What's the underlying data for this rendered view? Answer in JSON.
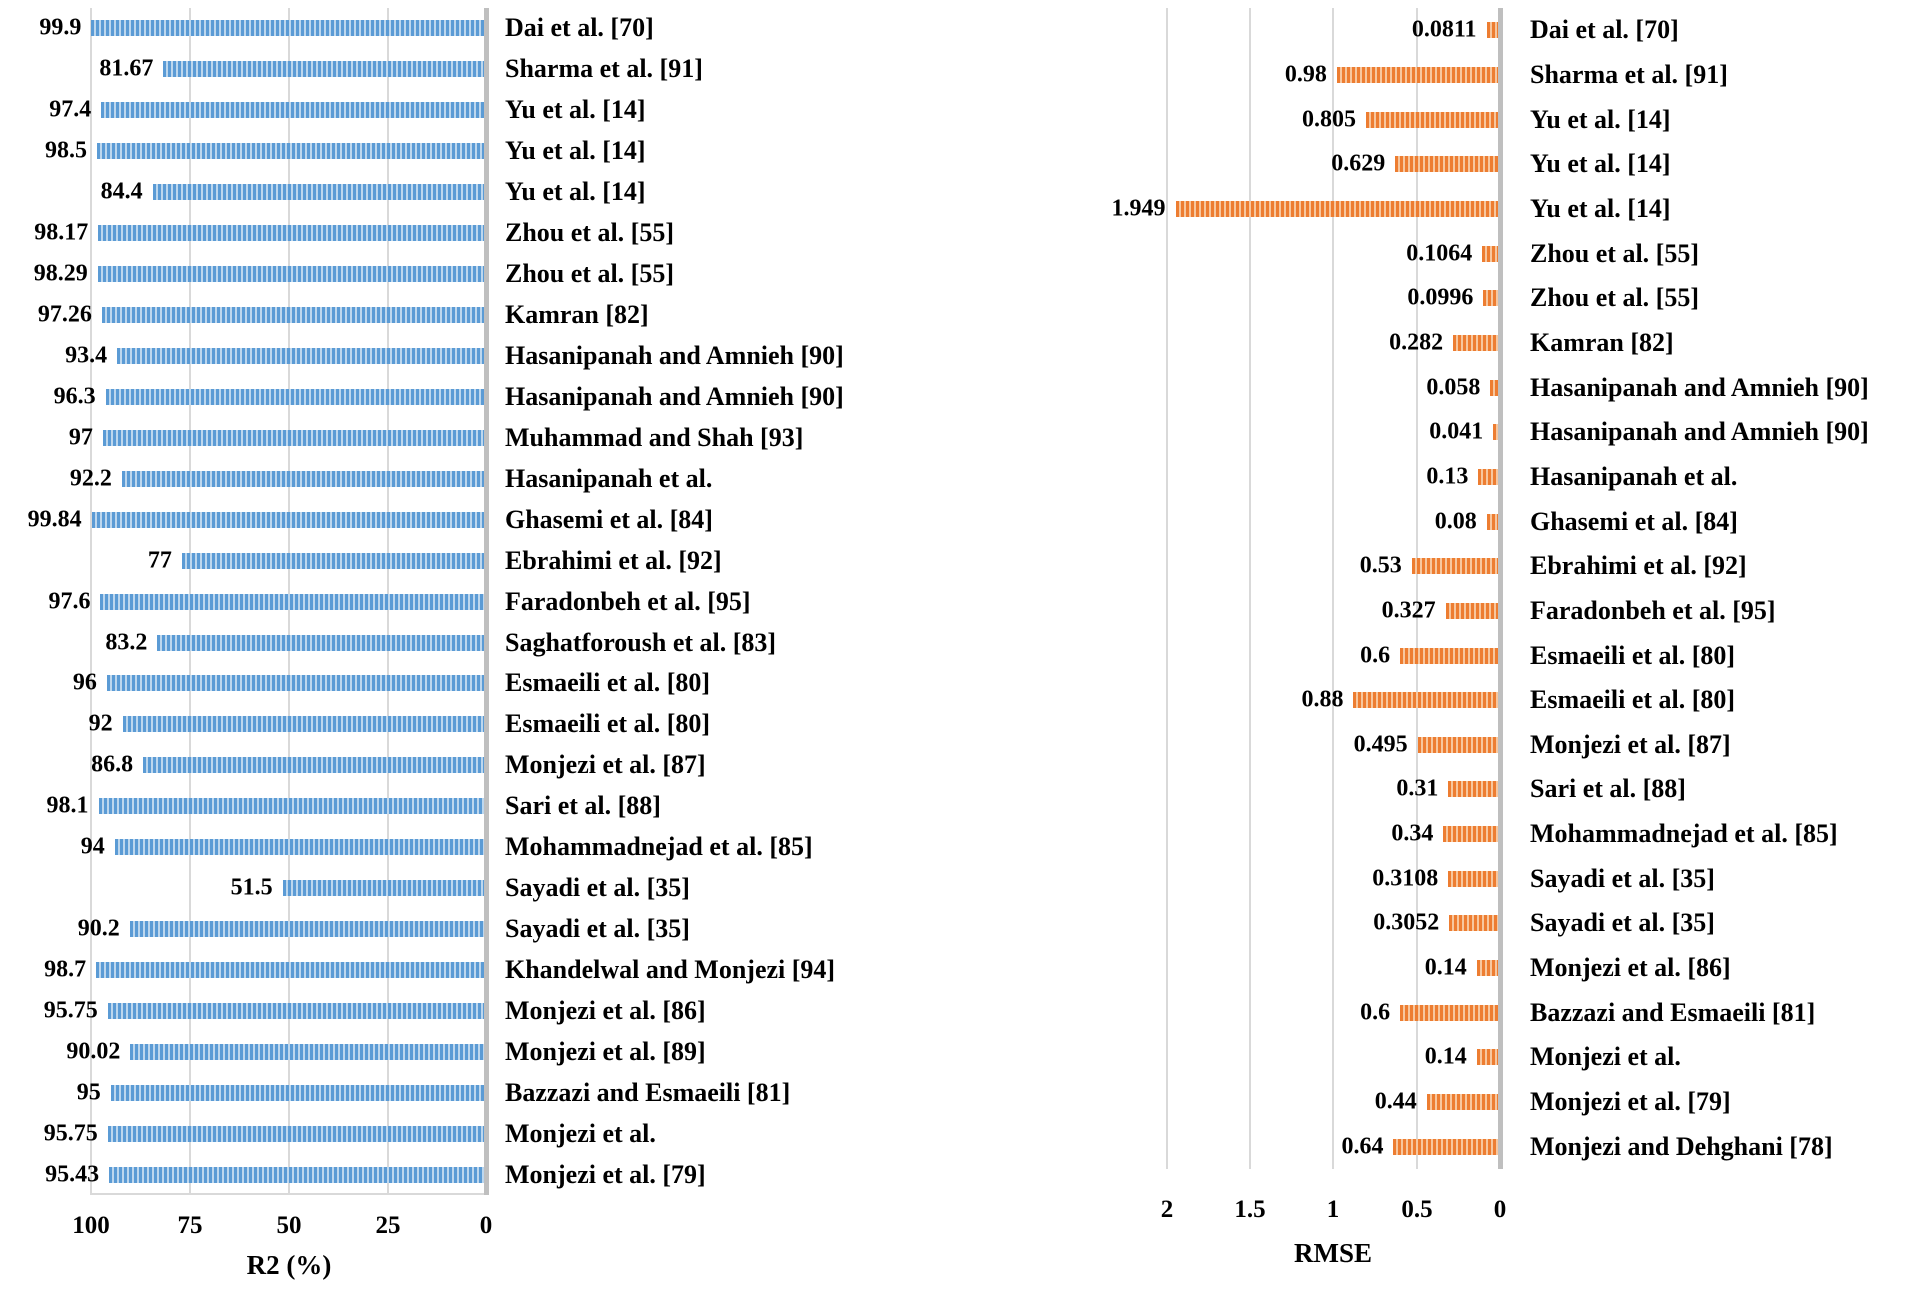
{
  "colors": {
    "left_bar": "#5B9BD5",
    "left_bar_light": "#BDD7EE",
    "right_bar": "#ED7D31",
    "right_bar_light": "#F7C79E",
    "gridline": "#D9D9D9",
    "axis_line": "#BFBFBF",
    "text": "#000000",
    "background": "#FFFFFF"
  },
  "chart_data": [
    {
      "type": "bar",
      "orientation": "horizontal",
      "title": "",
      "xlabel": "R2 (%)",
      "ylabel": "",
      "xlim": [
        100,
        0
      ],
      "axis_reversed": true,
      "grid": true,
      "legend": "none",
      "value_label_position": "outside-end",
      "axis_ticks": [
        100,
        75,
        50,
        25,
        0
      ],
      "axis_tick_labels": [
        "100",
        "75",
        "50",
        "25",
        "0"
      ],
      "categories": [
        "Dai et al. [70]",
        "Sharma et al. [91]",
        "Yu et al. [14]",
        "Yu et al. [14]",
        "Yu et al. [14]",
        "Zhou et al. [55]",
        "Zhou et al. [55]",
        "Kamran [82]",
        "Hasanipanah and Amnieh [90]",
        "Hasanipanah and Amnieh [90]",
        "Muhammad and Shah [93]",
        "Hasanipanah et al.",
        "Ghasemi et al. [84]",
        "Ebrahimi et al. [92]",
        "Faradonbeh et al. [95]",
        "Saghatforoush et al. [83]",
        "Esmaeili et al. [80]",
        "Esmaeili et al. [80]",
        "Monjezi et al. [87]",
        "Sari et al. [88]",
        "Mohammadnejad et al. [85]",
        "Sayadi et al. [35]",
        "Sayadi et al. [35]",
        "Khandelwal and Monjezi [94]",
        "Monjezi et al. [86]",
        "Monjezi et al. [89]",
        "Bazzazi and Esmaeili [81]",
        "Monjezi et al.",
        "Monjezi et al. [79]"
      ],
      "values": [
        99.9,
        81.67,
        97.4,
        98.5,
        84.4,
        98.17,
        98.29,
        97.26,
        93.4,
        96.3,
        97,
        92.2,
        99.84,
        77,
        97.6,
        83.2,
        96,
        92,
        86.8,
        98.1,
        94,
        51.5,
        90.2,
        98.7,
        95.75,
        90.02,
        95,
        95.75,
        95.43
      ],
      "value_labels": [
        "99.9",
        "81.67",
        "97.4",
        "98.5",
        "84.4",
        "98.17",
        "98.29",
        "97.26",
        "93.4",
        "96.3",
        "97",
        "92.2",
        "99.84",
        "77",
        "97.6",
        "83.2",
        "96",
        "92",
        "86.8",
        "98.1",
        "94",
        "51.5",
        "90.2",
        "98.7",
        "95.75",
        "90.02",
        "95",
        "95.75",
        "95.43"
      ]
    },
    {
      "type": "bar",
      "orientation": "horizontal",
      "title": "",
      "xlabel": "RMSE",
      "ylabel": "",
      "xlim": [
        2,
        0
      ],
      "axis_reversed": true,
      "grid": true,
      "legend": "none",
      "value_label_position": "outside-end",
      "axis_ticks": [
        2,
        1.5,
        1,
        0.5,
        0
      ],
      "axis_tick_labels": [
        "2",
        "1.5",
        "1",
        "0.5",
        "0"
      ],
      "categories": [
        "Dai et al. [70]",
        "Sharma et al. [91]",
        "Yu et al. [14]",
        "Yu et al. [14]",
        "Yu et al. [14]",
        "Zhou et al. [55]",
        "Zhou et al. [55]",
        "Kamran [82]",
        "Hasanipanah and Amnieh [90]",
        "Hasanipanah and Amnieh [90]",
        "Hasanipanah et al.",
        "Ghasemi et al. [84]",
        "Ebrahimi et al. [92]",
        "Faradonbeh et al. [95]",
        "Esmaeili et al. [80]",
        "Esmaeili et al. [80]",
        "Monjezi et al. [87]",
        "Sari et al. [88]",
        "Mohammadnejad et al. [85]",
        "Sayadi et al. [35]",
        "Sayadi et al. [35]",
        "Monjezi et al. [86]",
        "Bazzazi and Esmaeili [81]",
        "Monjezi et al.",
        "Monjezi et al. [79]",
        "Monjezi and Dehghani [78]"
      ],
      "values": [
        0.0811,
        0.98,
        0.805,
        0.629,
        1.949,
        0.1064,
        0.0996,
        0.282,
        0.058,
        0.041,
        0.13,
        0.08,
        0.53,
        0.327,
        0.6,
        0.88,
        0.495,
        0.31,
        0.34,
        0.3108,
        0.3052,
        0.14,
        0.6,
        0.14,
        0.44,
        0.64
      ],
      "value_labels": [
        "0.0811",
        "0.98",
        "0.805",
        "0.629",
        "1.949",
        "0.1064",
        "0.0996",
        "0.282",
        "0.058",
        "0.041",
        "0.13",
        "0.08",
        "0.53",
        "0.327",
        "0.6",
        "0.88",
        "0.495",
        "0.31",
        "0.34",
        "0.3108",
        "0.3052",
        "0.14",
        "0.6",
        "0.14",
        "0.44",
        "0.64"
      ]
    }
  ]
}
